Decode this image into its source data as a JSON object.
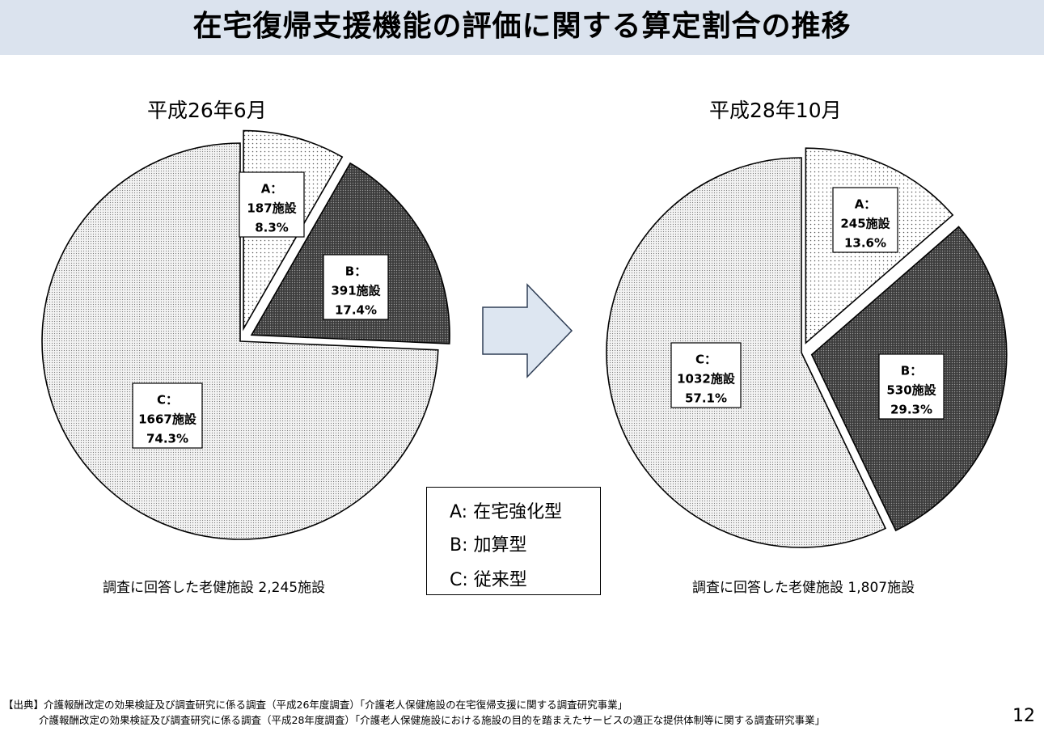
{
  "slide": {
    "title": "在宅復帰支援機能の評価に関する算定割合の推移",
    "page_number": "12",
    "footer": [
      "【出典】介護報酬改定の効果検証及び調査研究に係る調査（平成26年度調査）「介護老人保健施設の在宅復帰支援に関する調査研究事業」",
      "介護報酬改定の効果検証及び調査研究に係る調査（平成28年度調査）「介護老人保健施設における施設の目的を踏まえたサービスの適正な提供体制等に関する調査研究事業」"
    ]
  },
  "legend": {
    "items": [
      "A: 在宅強化型",
      "B: 加算型",
      "C: 従来型"
    ]
  },
  "chart_data": [
    {
      "type": "pie",
      "title": "平成26年6月",
      "total_note": "調査に回答した老健施設 2,245施設",
      "slices": [
        {
          "key": "A",
          "label_key": "A：",
          "count": 187,
          "count_label": "187施設",
          "percent": 8.3,
          "percent_label": "8.3%",
          "pattern": "light-dots",
          "exploded": true
        },
        {
          "key": "B",
          "label_key": "B：",
          "count": 391,
          "count_label": "391施設",
          "percent": 17.4,
          "percent_label": "17.4%",
          "pattern": "dark-dots",
          "exploded": true
        },
        {
          "key": "C",
          "label_key": "C：",
          "count": 1667,
          "count_label": "1667施設",
          "percent": 74.3,
          "percent_label": "74.3%",
          "pattern": "fine-dots",
          "exploded": false
        }
      ]
    },
    {
      "type": "pie",
      "title": "平成28年10月",
      "total_note": "調査に回答した老健施設 1,807施設",
      "slices": [
        {
          "key": "A",
          "label_key": "A：",
          "count": 245,
          "count_label": "245施設",
          "percent": 13.6,
          "percent_label": "13.6%",
          "pattern": "light-dots",
          "exploded": true
        },
        {
          "key": "B",
          "label_key": "B：",
          "count": 530,
          "count_label": "530施設",
          "percent": 29.3,
          "percent_label": "29.3%",
          "pattern": "dark-dots",
          "exploded": true
        },
        {
          "key": "C",
          "label_key": "C：",
          "count": 1032,
          "count_label": "1032施設",
          "percent": 57.1,
          "percent_label": "57.1%",
          "pattern": "fine-dots",
          "exploded": false
        }
      ]
    }
  ],
  "colors": {
    "title_bar": "#dbe3ee",
    "arrow_fill": "#dde6f1",
    "arrow_stroke": "#2f3e55",
    "slice_dark": "#4a4a4a",
    "slice_light": "#f3f3f3"
  }
}
